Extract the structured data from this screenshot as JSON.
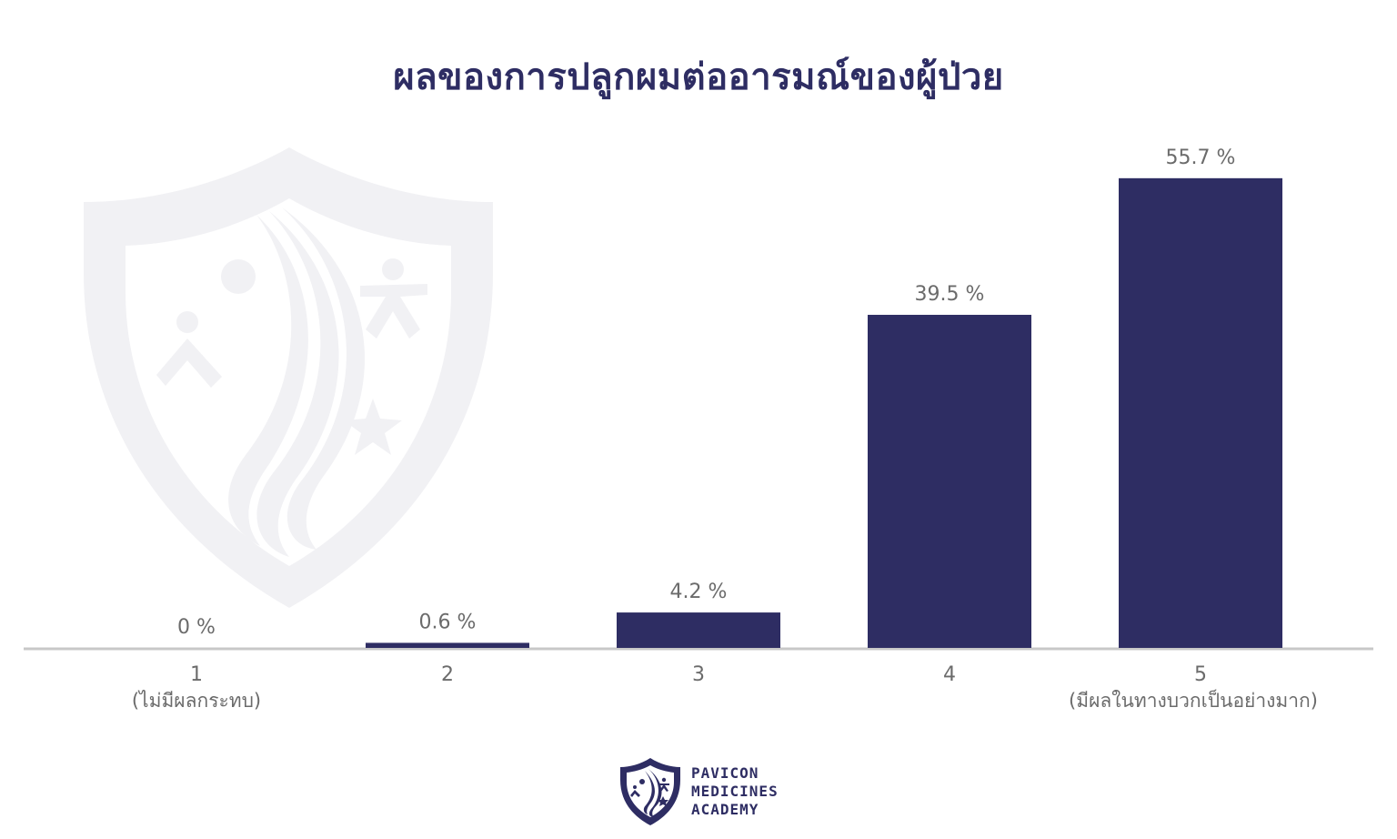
{
  "page": {
    "brand_lines": [
      "PAVICON",
      "MEDICINES",
      "ACADEMY"
    ]
  },
  "colors": {
    "bar": "#2e2d63",
    "axis": "#c8c8c8",
    "text": "#6b6b6b",
    "title": "#2e2d63",
    "watermark": "#f1f1f4"
  },
  "chart_data": {
    "type": "bar",
    "title": "ผลของการปลูกผมต่ออารมณ์ของผู้ป่วย",
    "xlabel": "",
    "ylabel": "",
    "ylim": [
      0,
      60
    ],
    "grid": false,
    "categories": [
      "1",
      "2",
      "3",
      "4",
      "5"
    ],
    "category_sublabels": [
      "(ไม่มีผลกระทบ)",
      "",
      "",
      "",
      "(มีผลในทางบวกเป็นอย่างมาก)"
    ],
    "values": [
      0,
      0.6,
      4.2,
      39.5,
      55.7
    ],
    "value_labels": [
      "0 %",
      "0.6 %",
      "4.2 %",
      "39.5 %",
      "55.7 %"
    ]
  }
}
